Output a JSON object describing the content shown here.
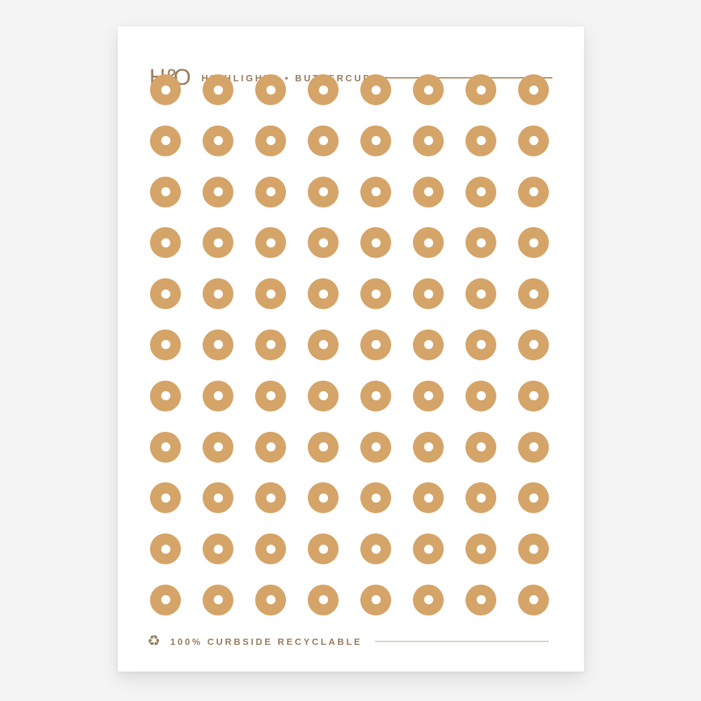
{
  "page": {
    "background_color": "#f4f4f5"
  },
  "sheet": {
    "background_color": "#ffffff",
    "brand_text_color": "#9a7b5c",
    "header": {
      "logo": {
        "h": "H",
        "amp": "&",
        "o": "O"
      },
      "title": "HIGHLIGHTS • BUTTERCUP",
      "rule_color": "#b98e63"
    },
    "grid": {
      "rows": 11,
      "columns": 8,
      "total_dots": 88,
      "dot_color": "#d5a468",
      "hole_color": "#ffffff"
    },
    "footer": {
      "icon_name": "recycle-icon",
      "icon_glyph": "♻",
      "text": "100% CURBSIDE RECYCLABLE",
      "rule_color": "#dbcfc2"
    }
  }
}
